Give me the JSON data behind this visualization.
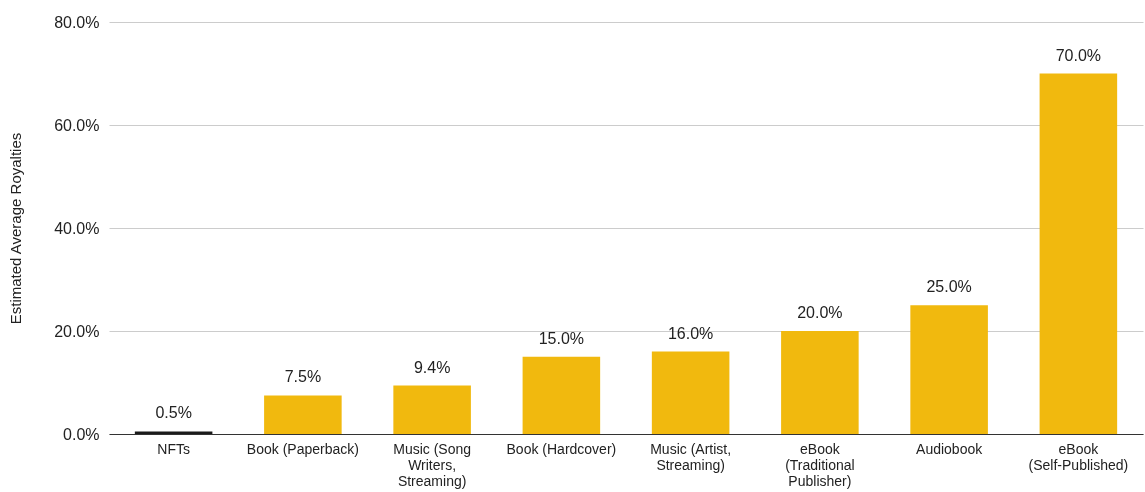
{
  "chart_data": {
    "type": "bar",
    "ylabel": "Estimated Average Royalties",
    "categories": [
      "NFTs",
      "Book (Paperback)",
      "Music (Song Writers, Streaming)",
      "Book (Hardcover)",
      "Music (Artist, Streaming)",
      "eBook (Traditional Publisher)",
      "Audiobook",
      "eBook (Self-Published)"
    ],
    "values": [
      0.5,
      7.5,
      9.4,
      15,
      16,
      20,
      25,
      70
    ],
    "colors": [
      "#1a1a1a",
      "#f1b90e",
      "#f1b90e",
      "#f1b90e",
      "#f1b90e",
      "#f1b90e",
      "#f1b90e",
      "#f1b90e"
    ],
    "value_labels": [
      "0.5%",
      "7.5%",
      "9.4%",
      "15.0%",
      "16.0%",
      "20.0%",
      "25.0%",
      "70.0%"
    ],
    "ylim": [
      0,
      80
    ],
    "yticks": [
      {
        "value": 0,
        "label": "0.0%"
      },
      {
        "value": 20,
        "label": "20.0%"
      },
      {
        "value": 40,
        "label": "40.0%"
      },
      {
        "value": 60,
        "label": "60.0%"
      },
      {
        "value": 80,
        "label": "80.0%"
      }
    ],
    "grid": "y"
  }
}
